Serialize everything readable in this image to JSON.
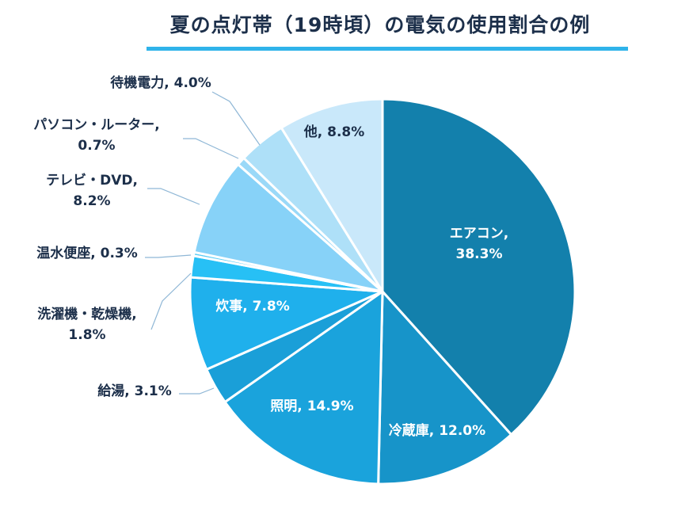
{
  "chart_data": {
    "type": "pie",
    "title": "夏の点灯帯（19時頃）の電気の使用割合の例",
    "unit": "%",
    "slices": [
      {
        "name": "エアコン",
        "value": 38.3,
        "label": "エアコン,",
        "value_label": "38.3%",
        "color": "#1380ac"
      },
      {
        "name": "冷蔵庫",
        "value": 12.0,
        "label": "冷蔵庫, 12.0%",
        "color": "#1794c9"
      },
      {
        "name": "照明",
        "value": 14.9,
        "label": "照明, 14.9%",
        "color": "#1aa3dc"
      },
      {
        "name": "給湯",
        "value": 3.1,
        "label": "給湯, 3.1%",
        "color": "#1a9fd8"
      },
      {
        "name": "炊事",
        "value": 7.8,
        "label": "炊事, 7.8%",
        "color": "#1fb0ec"
      },
      {
        "name": "洗濯機・乾燥機",
        "value": 1.8,
        "label": "洗濯機・乾燥機,",
        "value_label": "1.8%",
        "color": "#27c0f5"
      },
      {
        "name": "温水便座",
        "value": 0.3,
        "label": "温水便座, 0.3%",
        "color": "#5ccdf6"
      },
      {
        "name": "テレビ・DVD",
        "value": 8.2,
        "label": "テレビ・DVD,",
        "value_label": "8.2%",
        "color": "#87d2f8"
      },
      {
        "name": "パソコン・ルーター",
        "value": 0.7,
        "label": "パソコン・ルーター,",
        "value_label": "0.7%",
        "color": "#9ad9f8"
      },
      {
        "name": "待機電力",
        "value": 4.0,
        "label": "待機電力, 4.0%",
        "color": "#aee0f8"
      },
      {
        "name": "他",
        "value": 8.8,
        "label": "他, 8.8%",
        "color": "#c9e8fa"
      }
    ]
  }
}
